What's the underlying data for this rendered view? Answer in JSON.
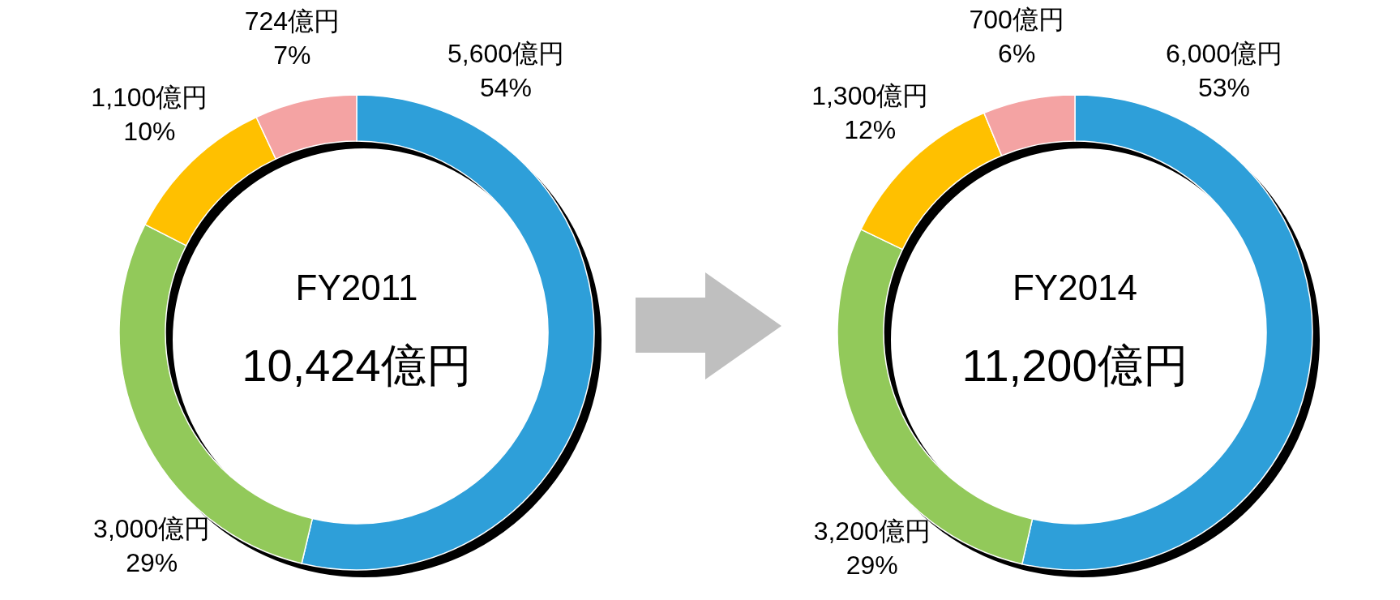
{
  "chart_data": [
    {
      "type": "donut",
      "title": "FY2011",
      "subtitle": "10,424億円",
      "categories": [
        null,
        null,
        null,
        null
      ],
      "values": [
        5600,
        3000,
        1100,
        724
      ],
      "colors": [
        "#2e9fd9",
        "#92c95a",
        "#ffc000",
        "#f4a3a3"
      ],
      "value_labels": [
        "5,600億円\n54%",
        "3,000億円\n29%",
        "1,100億円\n10%",
        "724億円\n7%"
      ]
    },
    {
      "type": "donut",
      "title": "FY2014",
      "subtitle": "11,200億円",
      "categories": [
        null,
        null,
        null,
        null
      ],
      "values": [
        6000,
        3200,
        1300,
        700
      ],
      "colors": [
        "#2e9fd9",
        "#92c95a",
        "#ffc000",
        "#f4a3a3"
      ],
      "value_labels": [
        "6,000億円\n53%",
        "3,200億円\n29%",
        "1,300億円\n12%",
        "700億円\n6%"
      ]
    }
  ]
}
